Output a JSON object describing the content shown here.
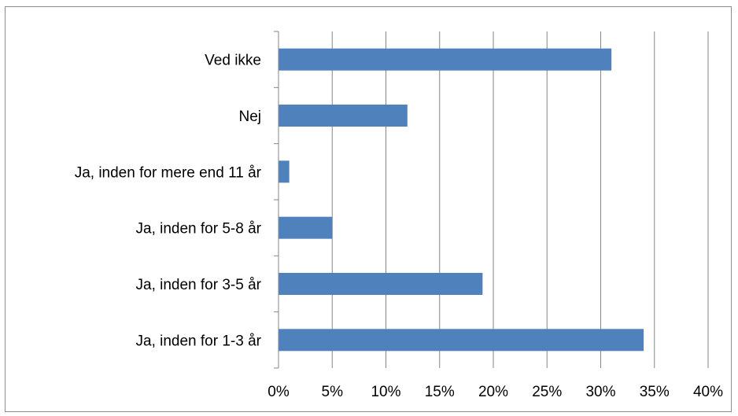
{
  "chart_data": {
    "type": "bar",
    "orientation": "horizontal",
    "title": "",
    "xlabel": "",
    "ylabel": "",
    "categories": [
      "Ved ikke",
      "Nej",
      "Ja, inden for mere end 11 år",
      "Ja, inden for 5-8 år",
      "Ja, inden for 3-5 år",
      "Ja, inden for 1-3 år"
    ],
    "values": [
      31,
      12,
      1,
      5,
      19,
      34
    ],
    "value_unit": "%",
    "xlim": [
      0,
      40
    ],
    "x_ticks": [
      "0%",
      "5%",
      "10%",
      "15%",
      "20%",
      "25%",
      "30%",
      "35%",
      "40%"
    ],
    "grid": "vertical",
    "legend": "none",
    "bar_color": "#4f81bd",
    "grid_color": "#868686"
  }
}
